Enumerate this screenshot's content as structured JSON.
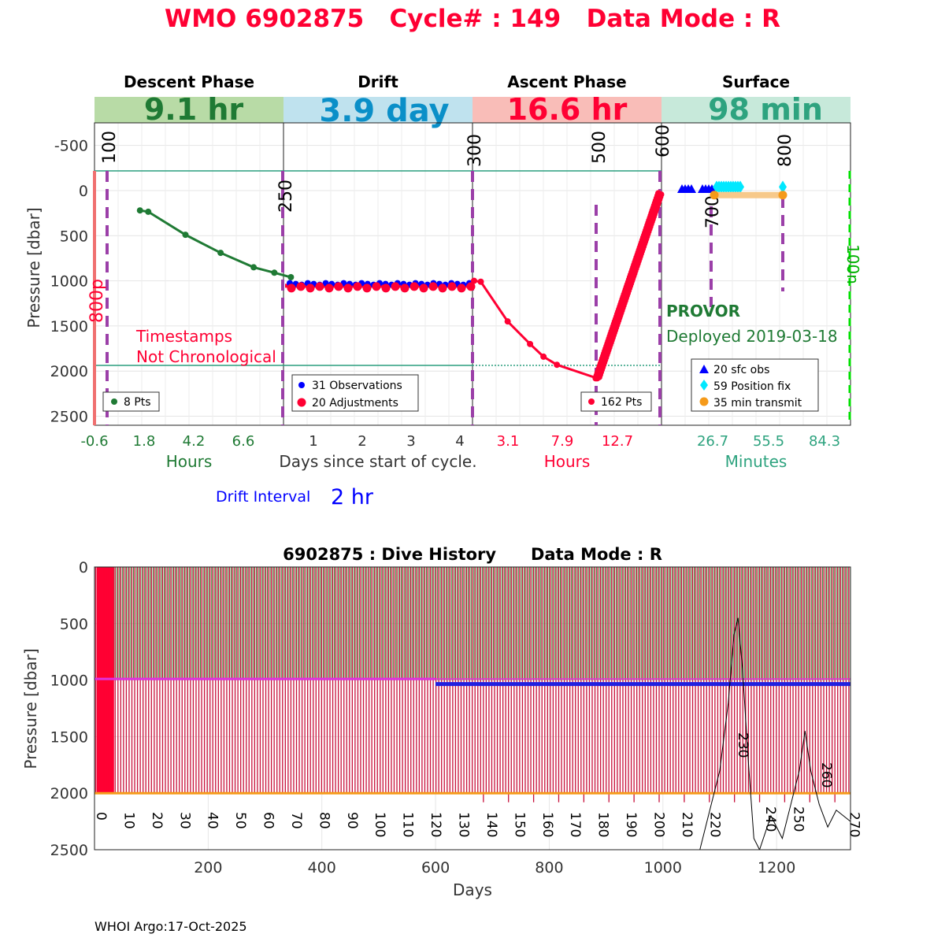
{
  "colors": {
    "title": "#ff0033",
    "descent": "#1f7a34",
    "drift": "#0a8fc8",
    "ascent": "#ff0033",
    "surface": "#2ea37f",
    "purple": "#9b3fa8",
    "blue": "#0000ff",
    "cyan": "#00e8ff",
    "orange": "#f59a1a",
    "teal": "#2a9d7f"
  },
  "header": {
    "title": "WMO 6902875   Cycle# : 149   Data Mode : R"
  },
  "phases": [
    {
      "name": "Descent Phase",
      "duration": "9.1 hr",
      "unit_label": "Hours",
      "ticks": [
        "-0.6",
        "1.8",
        "4.2",
        "6.6"
      ]
    },
    {
      "name": "Drift",
      "duration": "3.9 day",
      "unit_label": "Days since start of cycle.",
      "ticks": [
        "1",
        "2",
        "3",
        "4"
      ]
    },
    {
      "name": "Ascent Phase",
      "duration": "16.6 hr",
      "unit_label": "Hours",
      "ticks": [
        "3.1",
        "7.9",
        "12.7"
      ]
    },
    {
      "name": "Surface",
      "duration": "98 min",
      "unit_label": "Minutes",
      "ticks": [
        "26.7",
        "55.5",
        "84.3"
      ]
    }
  ],
  "cycle_chart": {
    "ylabel": "Pressure [dbar]",
    "yticks": [
      "-500",
      "0",
      "500",
      "1000",
      "1500",
      "2000",
      "2500"
    ],
    "ylim": [
      -750,
      2600
    ],
    "markers": [
      "100",
      "250",
      "300",
      "500",
      "600",
      "700",
      "800"
    ],
    "side_labels": {
      "left": "800p",
      "right": "100n"
    },
    "annotations": {
      "timestamps": "Timestamps\nNot Chronological",
      "timestamps_line1": "Timestamps",
      "timestamps_line2": "Not Chronological",
      "float_type": "PROVOR",
      "deployed": "Deployed 2019-03-18"
    },
    "legends": {
      "descent": [
        "8 Pts"
      ],
      "drift": [
        "31 Observations",
        "20 Adjustments"
      ],
      "ascent": [
        "162 Pts"
      ],
      "surface": [
        "20 sfc obs",
        "59 Position fix",
        "35 min transmit"
      ]
    },
    "drift_interval_label": "Drift Interval",
    "drift_interval_value": "2 hr"
  },
  "chart_data": [
    {
      "type": "line",
      "title": "Descent Phase",
      "xlabel": "Hours",
      "ylabel": "Pressure [dbar]",
      "x": [
        1.6,
        2.0,
        3.8,
        5.5,
        7.1,
        8.1,
        8.9
      ],
      "y": [
        220,
        235,
        490,
        690,
        850,
        910,
        960
      ]
    },
    {
      "type": "scatter",
      "title": "Drift",
      "xlabel": "Days since start of cycle.",
      "series": [
        {
          "name": "31 Observations",
          "y_approx": 1035
        },
        {
          "name": "20 Adjustments",
          "y_approx": 1055
        }
      ]
    },
    {
      "type": "line",
      "title": "Ascent Phase",
      "xlabel": "Hours",
      "x": [
        0.0,
        0.6,
        3.0,
        5.0,
        6.2,
        7.4,
        11.0,
        16.6
      ],
      "y": [
        1000,
        1010,
        1450,
        1700,
        1840,
        1930,
        2080,
        30
      ]
    },
    {
      "type": "scatter",
      "title": "Surface",
      "xlabel": "Minutes",
      "series": [
        {
          "name": "20 sfc obs",
          "y": 0
        },
        {
          "name": "59 Position fix",
          "y": -40
        },
        {
          "name": "35 min transmit",
          "y": 50
        }
      ]
    },
    {
      "type": "bar",
      "title": "6902875 : Dive History      Data Mode : R",
      "xlabel": "Days",
      "ylabel": "Pressure [dbar]",
      "xlim": [
        0,
        1330
      ],
      "ylim": [
        0,
        2500
      ],
      "xticks": [
        "200",
        "400",
        "600",
        "800",
        "1000",
        "1200"
      ],
      "yticks": [
        "0",
        "500",
        "1000",
        "1500",
        "2000",
        "2500"
      ],
      "cycle_labels": [
        "0",
        "10",
        "20",
        "30",
        "40",
        "50",
        "60",
        "70",
        "80",
        "90",
        "100",
        "110",
        "120",
        "130",
        "140",
        "150",
        "160",
        "170",
        "180",
        "190",
        "200",
        "210",
        "220",
        "230",
        "240",
        "250",
        "260",
        "270"
      ],
      "drift_pressure": {
        "before_day_600": 990,
        "after_day_600": 1035
      },
      "profile_pressure": 2000
    }
  ],
  "footer": {
    "text": "WHOI Argo:17-Oct-2025"
  }
}
